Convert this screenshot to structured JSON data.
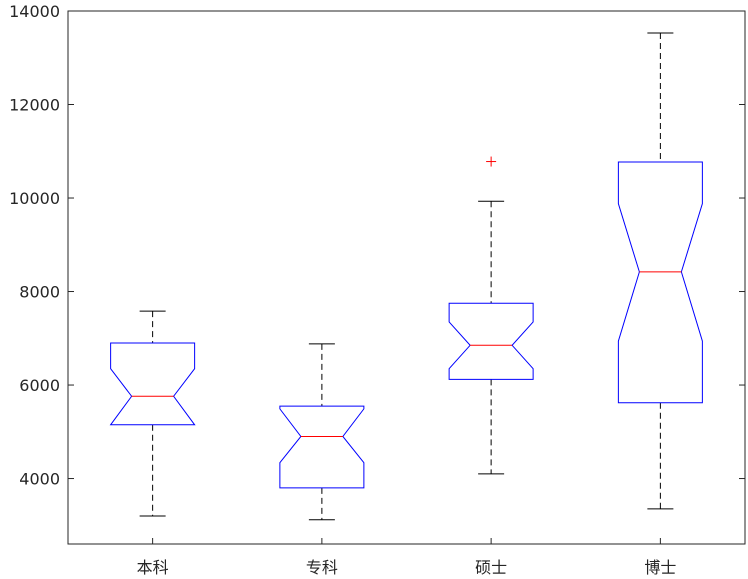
{
  "chart_data": {
    "type": "boxplot",
    "notched": true,
    "title": "",
    "xlabel": "",
    "ylabel": "",
    "ylim": [
      2600,
      14000
    ],
    "yticks": [
      4000,
      6000,
      8000,
      10000,
      12000,
      14000
    ],
    "ytick_labels": [
      "4000",
      "6000",
      "8000",
      "10000",
      "12000",
      "14000"
    ],
    "categories": [
      "本科",
      "专科",
      "硕士",
      "博士"
    ],
    "boxes": [
      {
        "category": "本科",
        "whisker_low": 3200,
        "q1": 5150,
        "median": 5760,
        "q3": 6900,
        "whisker_high": 7580,
        "notch_low": 5150,
        "notch_high": 6350,
        "outliers": []
      },
      {
        "category": "专科",
        "whisker_low": 3120,
        "q1": 3800,
        "median": 4900,
        "q3": 5550,
        "whisker_high": 6880,
        "notch_low": 4340,
        "notch_high": 5490,
        "outliers": []
      },
      {
        "category": "硕士",
        "whisker_low": 4100,
        "q1": 6120,
        "median": 6850,
        "q3": 7750,
        "whisker_high": 9930,
        "notch_low": 6350,
        "notch_high": 7350,
        "outliers": [
          10780
        ]
      },
      {
        "category": "博士",
        "whisker_low": 3350,
        "q1": 5620,
        "median": 8420,
        "q3": 10770,
        "whisker_high": 13530,
        "notch_low": 6940,
        "notch_high": 9880,
        "outliers": []
      }
    ],
    "colors": {
      "box": "#0000ff",
      "median": "#ff0000",
      "whisker": "#000000",
      "outlier": "#ff0000",
      "axis": "#262626"
    },
    "grid": false,
    "legend": "none"
  }
}
